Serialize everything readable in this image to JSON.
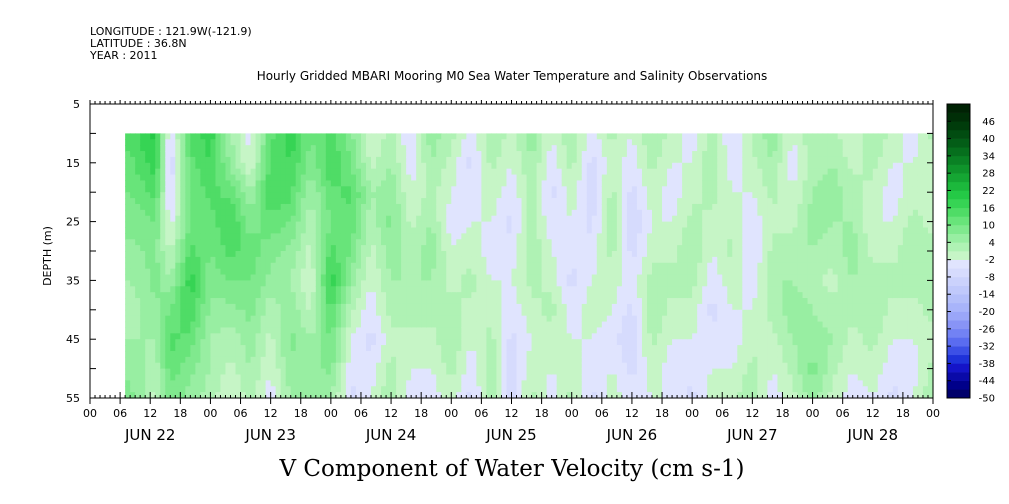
{
  "header": {
    "longitude": "LONGITUDE : 121.9W(-121.9)",
    "latitude": "LATITUDE : 36.8N",
    "year": "YEAR : 2011"
  },
  "chart_data": {
    "type": "heatmap",
    "title": "Hourly Gridded MBARI Mooring M0 Sea Water Temperature and Salinity Observations",
    "xlabel": "V Component of Water Velocity (cm s-1)",
    "ylabel": "DEPTH (m)",
    "x_range_hours": [
      0,
      168
    ],
    "data_start_hour": 7,
    "ylim": [
      55,
      5
    ],
    "data_depth_range": [
      10,
      55
    ],
    "y_ticks": [
      5,
      15,
      25,
      35,
      45,
      55
    ],
    "x_hour_ticks": [
      "00",
      "06",
      "12",
      "18",
      "00",
      "06",
      "12",
      "18",
      "00",
      "06",
      "12",
      "18",
      "00",
      "06",
      "12",
      "18",
      "00",
      "06",
      "12",
      "18",
      "00",
      "06",
      "12",
      "18",
      "00",
      "06",
      "12",
      "18",
      "00"
    ],
    "date_labels": [
      "JUN 22",
      "JUN 23",
      "JUN 24",
      "JUN 25",
      "JUN 26",
      "JUN 27",
      "JUN 28"
    ],
    "colorbar_ticks": [
      "46",
      "40",
      "34",
      "28",
      "22",
      "16",
      "10",
      "4",
      "-2",
      "-8",
      "-14",
      "-20",
      "-26",
      "-32",
      "-38",
      "-44",
      "-50"
    ],
    "colorbar_min": -50,
    "colorbar_max": 52,
    "colorbar_step": 3,
    "colorbar_colors": [
      "#00006b",
      "#00008a",
      "#0a0aa8",
      "#1414c8",
      "#1e32d9",
      "#3c50e6",
      "#5a6cf0",
      "#7282f4",
      "#8894f6",
      "#9aa6f8",
      "#a8b4fa",
      "#b4bffa",
      "#c0c9fb",
      "#cbd2fc",
      "#d6dbfd",
      "#e0e4fe",
      "#c6f5c6",
      "#aff2b4",
      "#98eea2",
      "#80e98e",
      "#68e47a",
      "#4fdc66",
      "#36d454",
      "#24c946",
      "#1cb83c",
      "#15a633",
      "#0f942b",
      "#0a8124",
      "#066f1d",
      "#035d17",
      "#014c11",
      "#003c0b",
      "#002e07",
      "#002204"
    ],
    "profiles": [
      {
        "hour": 8,
        "values": [
          14,
          12,
          10,
          8,
          6,
          4,
          2,
          4,
          6,
          8
        ]
      },
      {
        "hour": 13,
        "values": [
          20,
          18,
          14,
          10,
          8,
          8,
          6,
          4,
          2,
          0
        ]
      },
      {
        "hour": 16,
        "values": [
          -6,
          -8,
          -6,
          -4,
          0,
          4,
          10,
          14,
          12,
          8
        ]
      },
      {
        "hour": 20,
        "values": [
          14,
          12,
          10,
          10,
          14,
          18,
          16,
          12,
          8,
          6
        ]
      },
      {
        "hour": 24,
        "values": [
          18,
          16,
          14,
          12,
          10,
          8,
          6,
          4,
          4,
          2
        ]
      },
      {
        "hour": 28,
        "values": [
          4,
          6,
          12,
          16,
          14,
          10,
          6,
          2,
          0,
          -2
        ]
      },
      {
        "hour": 32,
        "values": [
          -4,
          -2,
          4,
          8,
          12,
          10,
          8,
          6,
          4,
          2
        ]
      },
      {
        "hour": 36,
        "values": [
          12,
          14,
          16,
          12,
          8,
          6,
          2,
          0,
          -2,
          -4
        ]
      },
      {
        "hour": 40,
        "values": [
          18,
          16,
          14,
          10,
          6,
          4,
          6,
          8,
          6,
          4
        ]
      },
      {
        "hour": 44,
        "values": [
          10,
          8,
          4,
          2,
          0,
          -2,
          0,
          4,
          6,
          4
        ]
      },
      {
        "hour": 48,
        "values": [
          14,
          16,
          12,
          10,
          14,
          18,
          14,
          10,
          8,
          4
        ]
      },
      {
        "hour": 52,
        "values": [
          8,
          10,
          14,
          12,
          10,
          6,
          2,
          -2,
          -4,
          -6
        ]
      },
      {
        "hour": 56,
        "values": [
          -2,
          0,
          4,
          2,
          0,
          -2,
          -4,
          -6,
          -4,
          -2
        ]
      },
      {
        "hour": 60,
        "values": [
          2,
          4,
          6,
          8,
          6,
          4,
          2,
          0,
          2,
          4
        ]
      },
      {
        "hour": 64,
        "values": [
          -6,
          -4,
          -2,
          0,
          2,
          4,
          2,
          0,
          -2,
          -4
        ]
      },
      {
        "hour": 68,
        "values": [
          6,
          4,
          2,
          4,
          6,
          4,
          2,
          0,
          -2,
          -4
        ]
      },
      {
        "hour": 72,
        "values": [
          2,
          0,
          -2,
          -4,
          -2,
          0,
          2,
          4,
          2,
          0
        ]
      },
      {
        "hour": 76,
        "values": [
          -4,
          -6,
          -4,
          -2,
          0,
          2,
          0,
          -2,
          -4,
          -6
        ]
      },
      {
        "hour": 80,
        "values": [
          4,
          2,
          0,
          -2,
          -4,
          -2,
          0,
          2,
          4,
          2
        ]
      },
      {
        "hour": 84,
        "values": [
          0,
          -2,
          -4,
          -6,
          -4,
          -2,
          -4,
          -6,
          -8,
          -6
        ]
      },
      {
        "hour": 88,
        "values": [
          6,
          4,
          2,
          2,
          4,
          2,
          0,
          -2,
          0,
          2
        ]
      },
      {
        "hour": 92,
        "values": [
          -2,
          -4,
          -6,
          -4,
          -2,
          0,
          2,
          0,
          -2,
          -4
        ]
      },
      {
        "hour": 96,
        "values": [
          4,
          2,
          0,
          -2,
          -4,
          -6,
          -4,
          -2,
          0,
          2
        ]
      },
      {
        "hour": 100,
        "values": [
          -4,
          -6,
          -8,
          -6,
          -4,
          -2,
          0,
          -2,
          -4,
          -6
        ]
      },
      {
        "hour": 104,
        "values": [
          2,
          0,
          2,
          4,
          2,
          0,
          -2,
          -4,
          -2,
          0
        ]
      },
      {
        "hour": 108,
        "values": [
          -2,
          -4,
          -6,
          -8,
          -6,
          -4,
          -6,
          -8,
          -6,
          -4
        ]
      },
      {
        "hour": 112,
        "values": [
          4,
          2,
          0,
          -2,
          0,
          2,
          4,
          2,
          0,
          -2
        ]
      },
      {
        "hour": 116,
        "values": [
          0,
          -2,
          -4,
          -2,
          0,
          2,
          0,
          -2,
          -4,
          -2
        ]
      },
      {
        "hour": 120,
        "values": [
          -4,
          -2,
          0,
          2,
          4,
          2,
          0,
          -2,
          -4,
          -6
        ]
      },
      {
        "hour": 124,
        "values": [
          2,
          4,
          2,
          0,
          -2,
          -4,
          -6,
          -4,
          -2,
          0
        ]
      },
      {
        "hour": 128,
        "values": [
          -6,
          -4,
          -2,
          0,
          2,
          0,
          -2,
          -4,
          -2,
          0
        ]
      },
      {
        "hour": 132,
        "values": [
          2,
          0,
          -2,
          -4,
          -6,
          -4,
          -2,
          0,
          2,
          4
        ]
      },
      {
        "hour": 136,
        "values": [
          6,
          4,
          2,
          0,
          2,
          4,
          2,
          0,
          -2,
          -4
        ]
      },
      {
        "hour": 140,
        "values": [
          -2,
          -4,
          -2,
          0,
          2,
          4,
          6,
          4,
          2,
          0
        ]
      },
      {
        "hour": 144,
        "values": [
          4,
          2,
          4,
          6,
          4,
          2,
          4,
          6,
          8,
          6
        ]
      },
      {
        "hour": 148,
        "values": [
          2,
          4,
          6,
          4,
          2,
          0,
          2,
          4,
          2,
          0
        ]
      },
      {
        "hour": 152,
        "values": [
          -2,
          0,
          2,
          4,
          6,
          4,
          2,
          0,
          -2,
          -4
        ]
      },
      {
        "hour": 156,
        "values": [
          4,
          2,
          0,
          -2,
          0,
          2,
          4,
          2,
          0,
          -2
        ]
      },
      {
        "hour": 160,
        "values": [
          0,
          -2,
          -4,
          -2,
          0,
          2,
          0,
          -2,
          -4,
          -6
        ]
      },
      {
        "hour": 164,
        "values": [
          -4,
          -2,
          0,
          2,
          4,
          2,
          0,
          -2,
          -4,
          -2
        ]
      },
      {
        "hour": 168,
        "values": [
          2,
          0,
          -2,
          0,
          2,
          4,
          2,
          0,
          2,
          4
        ]
      }
    ]
  }
}
